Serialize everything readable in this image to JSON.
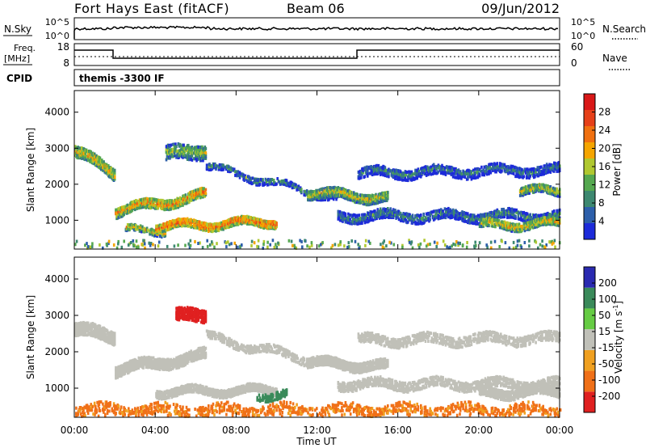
{
  "header": {
    "station": "Fort Hays East (fitACF)",
    "beam": "Beam 06",
    "date": "09/Jun/2012"
  },
  "noise_panel": {
    "left_label": "N.Sky",
    "right_label": "N.Search",
    "left_ticks": [
      "10^5",
      "10^0"
    ],
    "right_ticks": [
      "10^5",
      "10^0"
    ]
  },
  "freq_panel": {
    "left_label_1": "Freq.",
    "left_label_2": "[MHz]",
    "right_label": "Nave",
    "left_ticks": [
      "18",
      "8"
    ],
    "right_ticks": [
      "60",
      "0"
    ]
  },
  "cpid": {
    "label": "CPID",
    "text": "themis -3300 IF"
  },
  "colors": {
    "power": [
      "#1d2bd9",
      "#2d5faa",
      "#3d8870",
      "#55a850",
      "#b0c830",
      "#f5a500",
      "#f07010",
      "#e64019",
      "#d91818"
    ],
    "velocity": [
      "#2a2ab0",
      "#3a8a5a",
      "#66cc44",
      "#c0c0b8",
      "#f0a020",
      "#f07018",
      "#e02020"
    ]
  },
  "chart_data": [
    {
      "type": "heatmap",
      "name": "power",
      "ylabel": "Slant Range [km]",
      "yticks": [
        "1000",
        "2000",
        "3000",
        "4000"
      ],
      "ylim": [
        200,
        4600
      ],
      "xlim": [
        0,
        24
      ],
      "colorbar_label": "Power [dB]",
      "colorbar_ticks": [
        "4",
        "8",
        "12",
        "16",
        "20",
        "24",
        "28"
      ],
      "scale": [
        0,
        30
      ],
      "bands": [
        {
          "from": 0.0,
          "to": 2.0,
          "rng": [
            2900,
            2300
          ],
          "width": 320,
          "value": 18,
          "density": 0.75
        },
        {
          "from": 2.0,
          "to": 6.5,
          "rng": [
            1250,
            1700
          ],
          "width": 280,
          "value": 20,
          "density": 0.8
        },
        {
          "from": 2.5,
          "to": 4.5,
          "rng": [
            720,
            720
          ],
          "width": 200,
          "value": 17,
          "density": 0.6
        },
        {
          "from": 4.0,
          "to": 10.0,
          "rng": [
            820,
            950
          ],
          "width": 220,
          "value": 23,
          "density": 0.85
        },
        {
          "from": 4.5,
          "to": 6.5,
          "rng": [
            2800,
            2950
          ],
          "width": 400,
          "value": 14,
          "density": 0.5
        },
        {
          "from": 6.5,
          "to": 13.0,
          "rng": [
            2500,
            1600
          ],
          "width": 200,
          "value": 9,
          "density": 0.5
        },
        {
          "from": 11.5,
          "to": 15.5,
          "rng": [
            1750,
            1600
          ],
          "width": 260,
          "value": 16,
          "density": 0.8
        },
        {
          "from": 13.0,
          "to": 24.0,
          "rng": [
            1100,
            1100
          ],
          "width": 250,
          "value": 9,
          "density": 0.55
        },
        {
          "from": 14.0,
          "to": 24.0,
          "rng": [
            2300,
            2400
          ],
          "width": 280,
          "value": 8,
          "density": 0.5
        },
        {
          "from": 20.0,
          "to": 24.0,
          "rng": [
            850,
            900
          ],
          "width": 220,
          "value": 18,
          "density": 0.75
        },
        {
          "from": 22.0,
          "to": 24.0,
          "rng": [
            1800,
            1800
          ],
          "width": 220,
          "value": 16,
          "density": 0.7
        }
      ]
    },
    {
      "type": "heatmap",
      "name": "velocity",
      "ylabel": "Slant Range [km]",
      "yticks": [
        "1000",
        "2000",
        "3000",
        "4000"
      ],
      "ylim": [
        200,
        4600
      ],
      "xlim": [
        0,
        24
      ],
      "xticks": [
        "00:00",
        "04:00",
        "08:00",
        "12:00",
        "16:00",
        "20:00",
        "00:00"
      ],
      "xlabel": "Time UT",
      "colorbar_label": "Velocity [m s^-1]",
      "colorbar_ticks": [
        "200",
        "100",
        "50",
        "15",
        "-15",
        "-50",
        "-100",
        "-200"
      ],
      "scale": [
        -250,
        250
      ],
      "bands": [
        {
          "from": 0.0,
          "to": 2.0,
          "rng": [
            2600,
            2400
          ],
          "width": 350,
          "value": 0,
          "density": 0.75
        },
        {
          "from": 2.0,
          "to": 6.5,
          "rng": [
            1500,
            1900
          ],
          "width": 320,
          "value": 0,
          "density": 0.75
        },
        {
          "from": 4.0,
          "to": 10.0,
          "rng": [
            900,
            950
          ],
          "width": 240,
          "value": 0,
          "density": 0.8
        },
        {
          "from": 5.0,
          "to": 6.5,
          "rng": [
            2950,
            3000
          ],
          "width": 350,
          "value": -170,
          "density": 0.65
        },
        {
          "from": 9.0,
          "to": 10.5,
          "rng": [
            800,
            800
          ],
          "width": 220,
          "value": 70,
          "density": 0.45
        },
        {
          "from": 0.0,
          "to": 24.0,
          "rng": [
            400,
            400
          ],
          "width": 250,
          "value": -60,
          "density": 0.25
        },
        {
          "from": 6.5,
          "to": 13.0,
          "rng": [
            2400,
            1600
          ],
          "width": 220,
          "value": 0,
          "density": 0.45
        },
        {
          "from": 11.5,
          "to": 15.5,
          "rng": [
            1700,
            1600
          ],
          "width": 280,
          "value": 0,
          "density": 0.8
        },
        {
          "from": 13.0,
          "to": 24.0,
          "rng": [
            1100,
            1100
          ],
          "width": 260,
          "value": 0,
          "density": 0.5
        },
        {
          "from": 14.0,
          "to": 24.0,
          "rng": [
            2300,
            2350
          ],
          "width": 260,
          "value": 0,
          "density": 0.45
        },
        {
          "from": 20.0,
          "to": 24.0,
          "rng": [
            850,
            900
          ],
          "width": 250,
          "value": 0,
          "density": 0.75
        }
      ]
    }
  ]
}
